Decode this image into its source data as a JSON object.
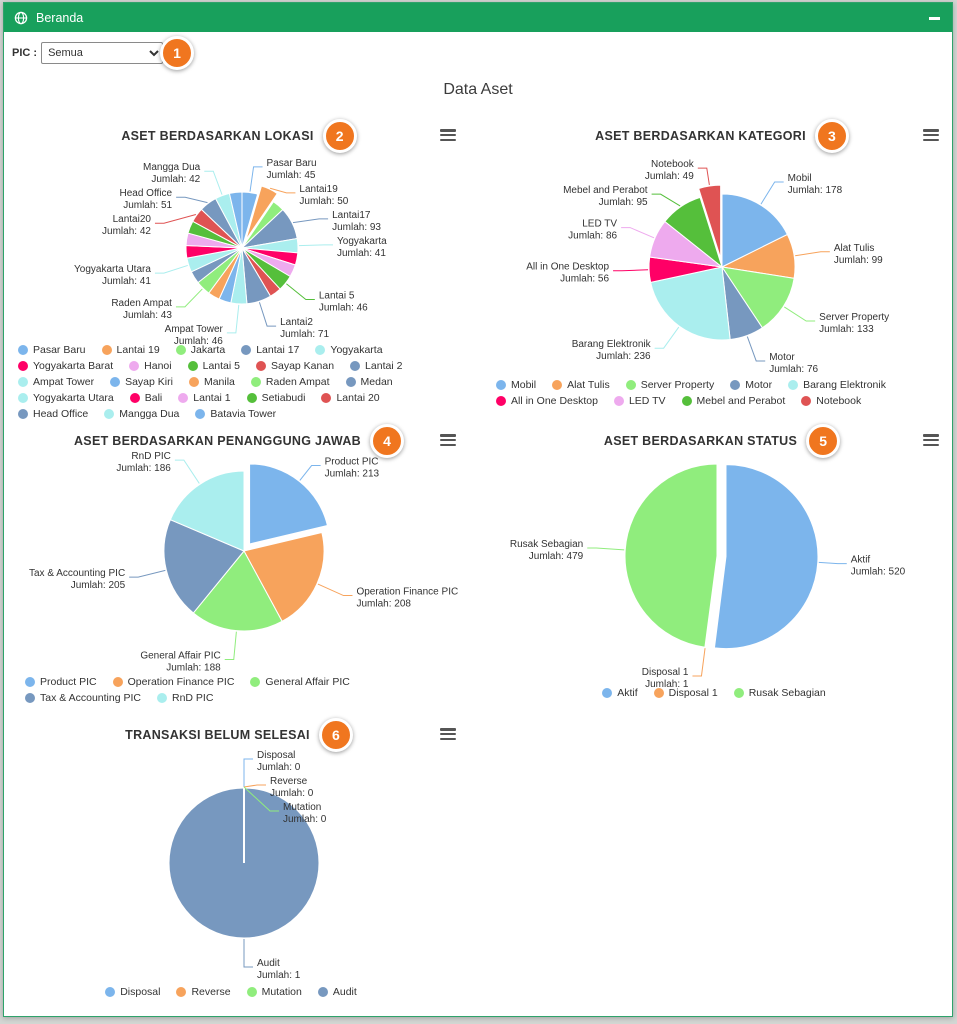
{
  "header": {
    "title": "Beranda"
  },
  "icons": {
    "titlebar": "globe-icon",
    "window_control": "minimize-icon",
    "chart_menu": "hamburger-menu-icon"
  },
  "filter": {
    "label": "PIC :",
    "value": "Semua",
    "options": [
      "Semua"
    ],
    "badge": "1"
  },
  "page_title": "Data Aset",
  "palette": [
    "#7cb5ec",
    "#f7a35c",
    "#90ed7d",
    "#7798BF",
    "#aaeeee",
    "#ff0066",
    "#eeaaee",
    "#55BF3B",
    "#DF5353",
    "#7798BF",
    "#aaeeee"
  ],
  "label_prefix": "Jumlah:",
  "chart_data": [
    {
      "id": "aset-berdasarkan-lokasi",
      "type": "pie",
      "title": "ASET BERDASARKAN LOKASI",
      "badge": "2",
      "legend_position": "bottom",
      "slices": [
        {
          "name": "Pasar Baru",
          "value": 45,
          "labeled": true
        },
        {
          "name": "Lantai 19",
          "label": "Lantai19",
          "value": 50,
          "labeled": true,
          "sliced": true
        },
        {
          "name": "Jakarta",
          "value": 35,
          "labeled": false,
          "estimated": true
        },
        {
          "name": "Lantai 17",
          "label": "Lantai17",
          "value": 93,
          "labeled": true
        },
        {
          "name": "Yogyakarta",
          "value": 41,
          "labeled": true
        },
        {
          "name": "Yogyakarta Barat",
          "value": 35,
          "labeled": false,
          "estimated": true
        },
        {
          "name": "Hanoi",
          "value": 36,
          "labeled": false,
          "estimated": true
        },
        {
          "name": "Lantai 5",
          "value": 46,
          "labeled": true
        },
        {
          "name": "Sayap Kanan",
          "value": 34,
          "labeled": false,
          "estimated": true
        },
        {
          "name": "Lantai 2",
          "label": "Lantai2",
          "value": 71,
          "labeled": true
        },
        {
          "name": "Ampat Tower",
          "value": 46,
          "labeled": true
        },
        {
          "name": "Sayap Kiri",
          "value": 35,
          "labeled": false,
          "estimated": true
        },
        {
          "name": "Manila",
          "value": 34,
          "labeled": false,
          "estimated": true
        },
        {
          "name": "Raden Ampat",
          "value": 43,
          "labeled": true
        },
        {
          "name": "Medan",
          "value": 36,
          "labeled": false,
          "estimated": true
        },
        {
          "name": "Yogyakarta Utara",
          "value": 41,
          "labeled": true
        },
        {
          "name": "Bali",
          "value": 36,
          "labeled": false,
          "estimated": true
        },
        {
          "name": "Lantai 1",
          "value": 36,
          "labeled": false,
          "estimated": true
        },
        {
          "name": "Setiabudi",
          "value": 36,
          "labeled": false,
          "estimated": true
        },
        {
          "name": "Lantai 20",
          "label": "Lantai20",
          "value": 42,
          "labeled": true
        },
        {
          "name": "Head Office",
          "value": 51,
          "labeled": true
        },
        {
          "name": "Mangga Dua",
          "value": 42,
          "labeled": true
        },
        {
          "name": "Batavia Tower",
          "value": 36,
          "labeled": false,
          "estimated": true
        }
      ]
    },
    {
      "id": "aset-berdasarkan-kategori",
      "type": "pie",
      "title": "ASET BERDASARKAN KATEGORI",
      "badge": "3",
      "legend_position": "bottom",
      "slices": [
        {
          "name": "Mobil",
          "value": 178,
          "labeled": true
        },
        {
          "name": "Alat Tulis",
          "value": 99,
          "labeled": true
        },
        {
          "name": "Server Property",
          "value": 133,
          "labeled": true
        },
        {
          "name": "Motor",
          "value": 76,
          "labeled": true
        },
        {
          "name": "Barang Elektronik",
          "value": 236,
          "labeled": true
        },
        {
          "name": "All in One Desktop",
          "value": 56,
          "labeled": true
        },
        {
          "name": "LED TV",
          "value": 86,
          "labeled": true
        },
        {
          "name": "Mebel and Perabot",
          "value": 95,
          "labeled": true
        },
        {
          "name": "Notebook",
          "value": 49,
          "labeled": true,
          "sliced": true
        }
      ]
    },
    {
      "id": "aset-berdasarkan-penanggung-jawab",
      "type": "pie",
      "title": "ASET BERDASARKAN PENANGGUNG JAWAB",
      "badge": "4",
      "legend_position": "bottom",
      "slices": [
        {
          "name": "Product PIC",
          "value": 213,
          "labeled": true,
          "sliced": true
        },
        {
          "name": "Operation Finance PIC",
          "value": 208,
          "labeled": true
        },
        {
          "name": "General Affair PIC",
          "value": 188,
          "labeled": true
        },
        {
          "name": "Tax & Accounting PIC",
          "value": 205,
          "labeled": true
        },
        {
          "name": "RnD PIC",
          "value": 186,
          "labeled": true
        }
      ]
    },
    {
      "id": "aset-berdasarkan-status",
      "type": "pie",
      "title": "ASET BERDASARKAN STATUS",
      "badge": "5",
      "legend_position": "bottom",
      "slices": [
        {
          "name": "Aktif",
          "value": 520,
          "labeled": true,
          "sliced": true
        },
        {
          "name": "Disposal 1",
          "value": 1,
          "labeled": true
        },
        {
          "name": "Rusak Sebagian",
          "value": 479,
          "labeled": true
        }
      ]
    },
    {
      "id": "transaksi-belum-selesai",
      "type": "pie",
      "title": "TRANSAKSI BELUM SELESAI",
      "badge": "6",
      "legend_position": "bottom",
      "slices": [
        {
          "name": "Disposal",
          "value": 0,
          "labeled": true
        },
        {
          "name": "Reverse",
          "value": 0,
          "labeled": true
        },
        {
          "name": "Mutation",
          "value": 0,
          "labeled": true
        },
        {
          "name": "Audit",
          "value": 1,
          "labeled": true
        }
      ]
    }
  ]
}
